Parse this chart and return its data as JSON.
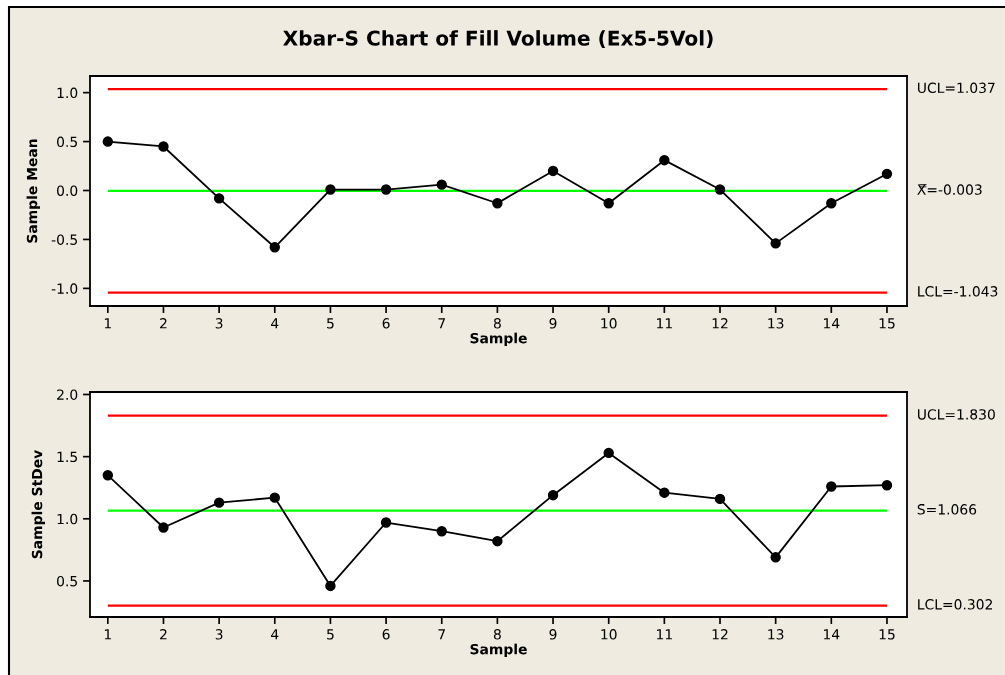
{
  "chart_data": [
    {
      "type": "line",
      "title": "Xbar-S Chart of Fill Volume (Ex5-5Vol)",
      "xlabel": "Sample",
      "ylabel": "Sample Mean",
      "x": [
        1,
        2,
        3,
        4,
        5,
        6,
        7,
        8,
        9,
        10,
        11,
        12,
        13,
        14,
        15
      ],
      "series": [
        {
          "color": "#000000",
          "values": [
            0.5,
            0.45,
            -0.08,
            -0.58,
            0.01,
            0.01,
            0.06,
            -0.13,
            0.2,
            -0.13,
            0.31,
            0.01,
            -0.54,
            -0.13,
            0.17
          ]
        }
      ],
      "xlim": [
        0.68,
        15.36
      ],
      "ylim": [
        -1.18,
        1.17
      ],
      "xticks": [
        1,
        2,
        3,
        4,
        5,
        6,
        7,
        8,
        9,
        10,
        11,
        12,
        13,
        14,
        15
      ],
      "yticks": [
        {
          "value": -1,
          "label": "-1.0"
        },
        {
          "value": -0.5,
          "label": "-0.5"
        },
        {
          "value": 0,
          "label": "0.0"
        },
        {
          "value": 0.5,
          "label": "0.5"
        },
        {
          "value": 1,
          "label": "1.0"
        }
      ],
      "ref_lines": [
        {
          "axis": "y",
          "value": 1.037,
          "label": "UCL=1.037",
          "color": "#ff0000"
        },
        {
          "axis": "y",
          "value": -0.003,
          "label": "X̿=-0.003",
          "color": "#00ff00"
        },
        {
          "axis": "y",
          "value": -1.043,
          "label": "LCL=-1.043",
          "color": "#ff0000"
        }
      ],
      "marker": "circle",
      "line_style": "solid",
      "grid": false
    },
    {
      "type": "line",
      "xlabel": "Sample",
      "ylabel": "Sample StDev",
      "x": [
        1,
        2,
        3,
        4,
        5,
        6,
        7,
        8,
        9,
        10,
        11,
        12,
        13,
        14,
        15
      ],
      "series": [
        {
          "color": "#000000",
          "values": [
            1.35,
            0.93,
            1.13,
            1.17,
            0.46,
            0.97,
            0.9,
            0.82,
            1.19,
            1.53,
            1.21,
            1.16,
            0.69,
            1.26,
            1.27
          ]
        }
      ],
      "xlim": [
        0.68,
        15.36
      ],
      "ylim": [
        0.21,
        2.02
      ],
      "xticks": [
        1,
        2,
        3,
        4,
        5,
        6,
        7,
        8,
        9,
        10,
        11,
        12,
        13,
        14,
        15
      ],
      "yticks": [
        {
          "value": 0.5,
          "label": "0.5"
        },
        {
          "value": 1,
          "label": "1.0"
        },
        {
          "value": 1.5,
          "label": "1.5"
        },
        {
          "value": 2,
          "label": "2.0"
        }
      ],
      "ref_lines": [
        {
          "axis": "y",
          "value": 1.83,
          "label": "UCL=1.830",
          "color": "#ff0000"
        },
        {
          "axis": "y",
          "value": 1.066,
          "label": "S̄=1.066",
          "color": "#00ff00"
        },
        {
          "axis": "y",
          "value": 0.302,
          "label": "LCL=0.302",
          "color": "#ff0000"
        }
      ],
      "marker": "circle",
      "line_style": "solid",
      "grid": false
    }
  ]
}
